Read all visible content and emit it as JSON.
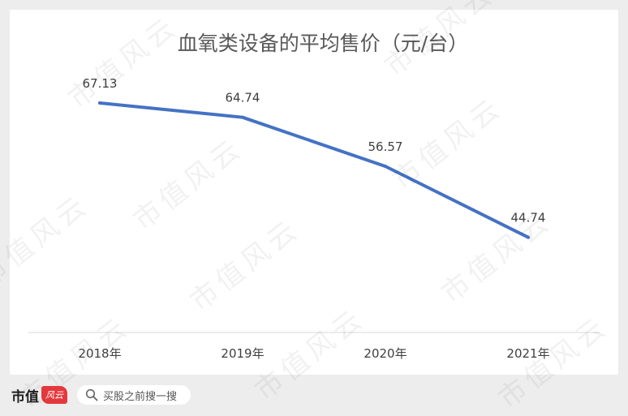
{
  "footer": {
    "brand_text": "市值",
    "brand_logo_text": "风云",
    "search_text": "买股之前搜一搜"
  },
  "watermark_text": "市值风云",
  "chart_data": {
    "type": "line",
    "title": "血氧类设备的平均售价（元/台）",
    "categories": [
      "2018年",
      "2019年",
      "2020年",
      "2021年"
    ],
    "series": [
      {
        "values": [
          67.13,
          64.74,
          56.57,
          44.74
        ]
      }
    ],
    "data_labels": [
      "67.13",
      "64.74",
      "56.57",
      "44.74"
    ],
    "line_color": "#4472c4",
    "axis_color": "#d9d9d9",
    "gridlines": false,
    "legend": "none"
  }
}
